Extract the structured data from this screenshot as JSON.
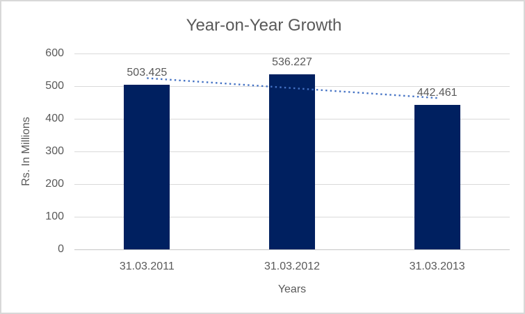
{
  "chart_data": {
    "type": "bar",
    "title": "Year-on-Year Growth",
    "categories": [
      "31.03.2011",
      "31.03.2012",
      "31.03.2013"
    ],
    "values": [
      503.425,
      536.227,
      442.461
    ],
    "data_labels": [
      "503.425",
      "536.227",
      "442.461"
    ],
    "xlabel": "Years",
    "ylabel": "Rs. In Millions",
    "ylim": [
      0,
      600
    ],
    "yticks": [
      0,
      100,
      200,
      300,
      400,
      500,
      600
    ],
    "grid": true,
    "legend": "none",
    "bar_color": "#002060",
    "text_color": "#595959",
    "gridline_color": "#d9d9d9",
    "axis_line_color": "#c6c6c6",
    "trendline": {
      "type": "linear",
      "style": "dotted",
      "color": "#4472c4",
      "start_value": 524.5,
      "end_value": 463.6
    }
  }
}
